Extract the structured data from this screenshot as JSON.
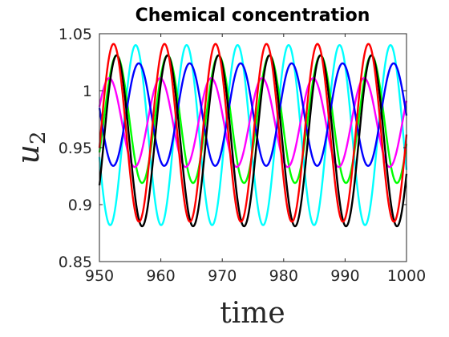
{
  "chart_data": {
    "type": "line",
    "title": "Chemical concentration",
    "xlabel": "time",
    "ylabel": "u",
    "ylabel_subscript": "2",
    "xlim": [
      950,
      1000
    ],
    "ylim": [
      0.85,
      1.05
    ],
    "xticks": [
      950,
      960,
      970,
      980,
      990,
      1000
    ],
    "xtick_labels": [
      "950",
      "960",
      "970",
      "980",
      "990",
      "1000"
    ],
    "yticks": [
      0.85,
      0.9,
      0.95,
      1.0,
      1.05
    ],
    "ytick_labels": [
      "0.85",
      "0.9",
      "0.95",
      "1",
      "1.05"
    ],
    "grid": false,
    "legend": "none",
    "period": 8.3,
    "series": [
      {
        "color": "#00ffff",
        "mean": 0.961,
        "amplitude": 0.079,
        "first_peak": 955.9
      },
      {
        "color": "#00ff00",
        "mean": 0.975,
        "amplitude": 0.056,
        "first_peak": 952.8
      },
      {
        "color": "#ff00ff",
        "mean": 0.972,
        "amplitude": 0.039,
        "first_peak": 951.6
      },
      {
        "color": "#0000ff",
        "mean": 0.979,
        "amplitude": 0.045,
        "first_peak": 956.4
      },
      {
        "color": "#000000",
        "mean": 0.956,
        "amplitude": 0.075,
        "first_peak": 952.8
      },
      {
        "color": "#ff0000",
        "mean": 0.963,
        "amplitude": 0.078,
        "first_peak": 952.3
      }
    ]
  }
}
